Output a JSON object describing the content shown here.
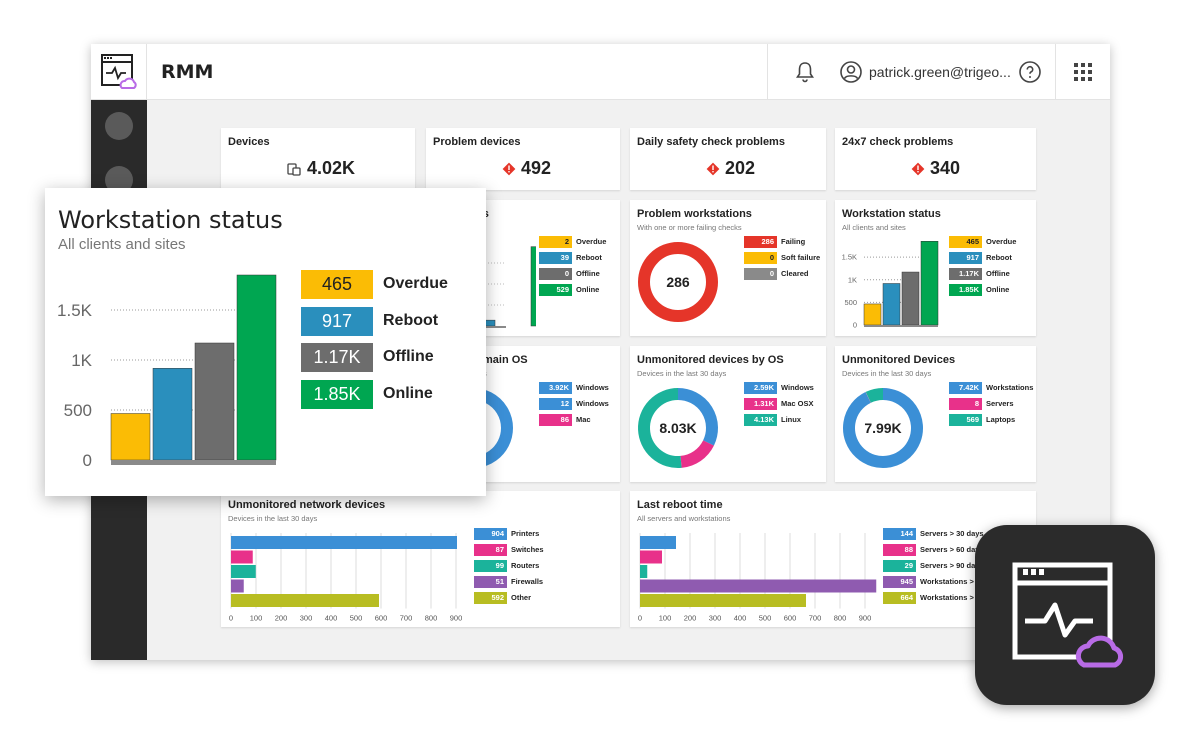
{
  "header": {
    "app_title": "RMM",
    "user_email": "patrick.green@trigeo..."
  },
  "colors": {
    "overdue": "#fbbc05",
    "reboot": "#2a8fbd",
    "offline": "#6d6d6d",
    "online": "#00a651",
    "failing": "#e53529",
    "blue": "#3b8fd6",
    "pink": "#e8318a",
    "teal": "#1bb39b",
    "purple": "#8f5bb0",
    "olive": "#b8bd22",
    "accent_purple": "#b86be6"
  },
  "kpis": [
    {
      "label": "Devices",
      "value": "4.02K",
      "icon": "devices-icon"
    },
    {
      "label": "Problem devices",
      "value": "492",
      "icon": "warning-icon"
    },
    {
      "label": "Daily safety check problems",
      "value": "202",
      "icon": "warning-icon"
    },
    {
      "label": "24x7 check problems",
      "value": "340",
      "icon": "warning-icon"
    }
  ],
  "partial_cards": {
    "status_title_fragment": "us",
    "status_sub_fragment": "es",
    "os_title_fragment": "main OS",
    "os_sub_fragment": "s",
    "os_center_fragment": "K"
  },
  "problem_workstations": {
    "title": "Problem workstations",
    "subtitle": "With one or more failing checks",
    "center": "286",
    "legend": [
      {
        "value": "286",
        "label": "Failing"
      },
      {
        "value": "0",
        "label": "Soft failure"
      },
      {
        "value": "0",
        "label": "Cleared"
      }
    ]
  },
  "workstation_status": {
    "title": "Workstation status",
    "subtitle": "All clients and sites",
    "legend": [
      {
        "value": "465",
        "label": "Overdue"
      },
      {
        "value": "917",
        "label": "Reboot"
      },
      {
        "value": "1.17K",
        "label": "Offline"
      },
      {
        "value": "1.85K",
        "label": "Online"
      }
    ]
  },
  "partial_status_legend": [
    {
      "value": "2",
      "label": "Overdue"
    },
    {
      "value": "39",
      "label": "Reboot"
    },
    {
      "value": "0",
      "label": "Offline"
    },
    {
      "value": "529",
      "label": "Online"
    }
  ],
  "partial_os_legend": [
    {
      "value": "3.92K",
      "label": "Windows"
    },
    {
      "value": "12",
      "label": "Windows"
    },
    {
      "value": "86",
      "label": "Mac"
    }
  ],
  "unmonitored_by_os": {
    "title": "Unmonitored devices by OS",
    "subtitle": "Devices in the last 30 days",
    "center": "8.03K",
    "legend": [
      {
        "value": "2.59K",
        "label": "Windows"
      },
      {
        "value": "1.31K",
        "label": "Mac OSX"
      },
      {
        "value": "4.13K",
        "label": "Linux"
      }
    ]
  },
  "unmonitored_devices": {
    "title": "Unmonitored Devices",
    "subtitle": "Devices in the last 30 days",
    "center": "7.99K",
    "legend": [
      {
        "value": "7.42K",
        "label": "Workstations"
      },
      {
        "value": "8",
        "label": "Servers"
      },
      {
        "value": "569",
        "label": "Laptops"
      }
    ]
  },
  "unmonitored_network": {
    "title": "Unmonitored network devices",
    "subtitle": "Devices in the last 30 days",
    "legend": [
      {
        "value": "904",
        "label": "Printers"
      },
      {
        "value": "87",
        "label": "Switches"
      },
      {
        "value": "99",
        "label": "Routers"
      },
      {
        "value": "51",
        "label": "Firewalls"
      },
      {
        "value": "592",
        "label": "Other"
      }
    ]
  },
  "last_reboot": {
    "title": "Last reboot time",
    "subtitle": "All servers and workstations",
    "legend": [
      {
        "value": "144",
        "label": "Servers > 30 days"
      },
      {
        "value": "88",
        "label": "Servers > 60 days"
      },
      {
        "value": "29",
        "label": "Servers > 90 days"
      },
      {
        "value": "945",
        "label": "Workstations > 6"
      },
      {
        "value": "664",
        "label": "Workstations > 9"
      }
    ]
  },
  "popup": {
    "title": "Workstation status",
    "subtitle": "All clients and sites",
    "legend": [
      {
        "value": "465",
        "label": "Overdue"
      },
      {
        "value": "917",
        "label": "Reboot"
      },
      {
        "value": "1.17K",
        "label": "Offline"
      },
      {
        "value": "1.85K",
        "label": "Online"
      }
    ]
  },
  "chart_data": [
    {
      "type": "bar",
      "title": "Workstation status",
      "subtitle": "All clients and sites",
      "categories": [
        "Overdue",
        "Reboot",
        "Offline",
        "Online"
      ],
      "values": [
        465,
        917,
        1170,
        1850
      ],
      "y_ticks": [
        "0",
        "500",
        "1K",
        "1.5K"
      ],
      "ylim": [
        0,
        1900
      ],
      "grid": true
    },
    {
      "type": "bar",
      "title": "",
      "categories": [
        "Overdue",
        "Reboot",
        "Offline",
        "Online"
      ],
      "values": [
        2,
        39,
        0,
        529
      ],
      "ylim": [
        0,
        560
      ],
      "grid": true
    },
    {
      "type": "pie",
      "title": "Problem workstations",
      "categories": [
        "Failing",
        "Soft failure",
        "Cleared"
      ],
      "values": [
        286,
        0,
        0
      ]
    },
    {
      "type": "pie",
      "title": "",
      "categories": [
        "Windows",
        "Windows",
        "Mac"
      ],
      "values": [
        3920,
        12,
        86
      ]
    },
    {
      "type": "pie",
      "title": "Unmonitored devices by OS",
      "categories": [
        "Windows",
        "Mac OSX",
        "Linux"
      ],
      "values": [
        2590,
        1310,
        4130
      ]
    },
    {
      "type": "pie",
      "title": "Unmonitored Devices",
      "categories": [
        "Workstations",
        "Servers",
        "Laptops"
      ],
      "values": [
        7420,
        8,
        569
      ]
    },
    {
      "type": "bar",
      "orientation": "horizontal",
      "title": "Unmonitored network devices",
      "categories": [
        "Printers",
        "Switches",
        "Routers",
        "Firewalls",
        "Other"
      ],
      "values": [
        904,
        87,
        99,
        51,
        592
      ],
      "x_ticks": [
        "0",
        "100",
        "200",
        "300",
        "400",
        "500",
        "600",
        "700",
        "800",
        "900"
      ],
      "xlim": [
        0,
        900
      ],
      "grid": true
    },
    {
      "type": "bar",
      "orientation": "horizontal",
      "title": "Last reboot time",
      "categories": [
        "Servers > 30 days",
        "Servers > 60 days",
        "Servers > 90 days",
        "Workstations > 6",
        "Workstations > 9"
      ],
      "values": [
        144,
        88,
        29,
        945,
        664
      ],
      "x_ticks": [
        "0",
        "100",
        "200",
        "300",
        "400",
        "500",
        "600",
        "700",
        "800",
        "900"
      ],
      "xlim": [
        0,
        900
      ],
      "grid": true
    }
  ]
}
